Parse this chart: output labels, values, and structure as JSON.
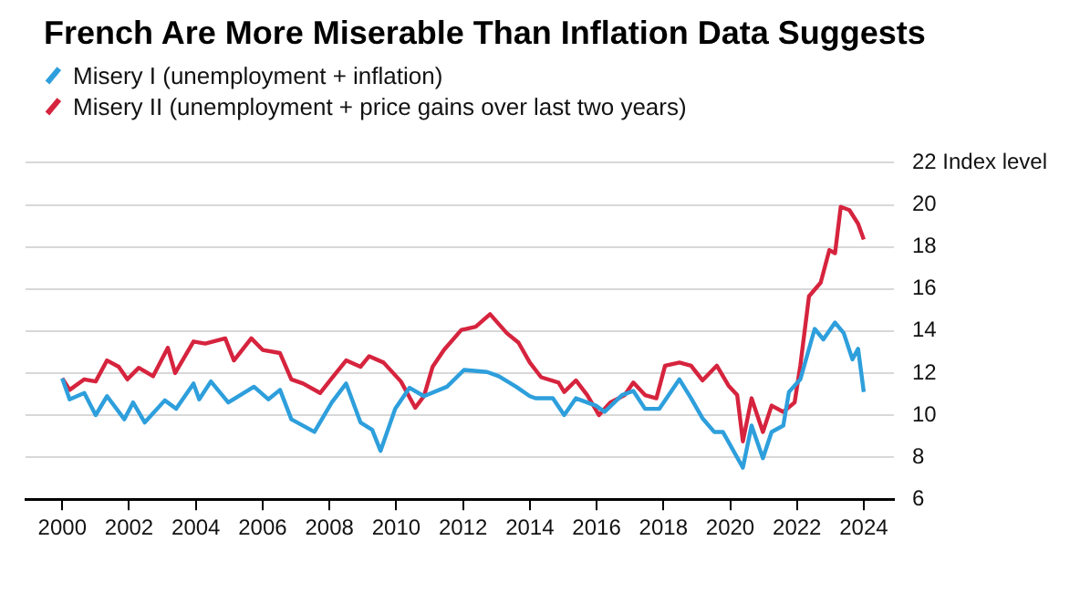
{
  "chart_data": {
    "type": "line",
    "title": "French Are More Miserable Than Inflation Data Suggests",
    "series": [
      {
        "name": "Misery I (unemployment + inflation)",
        "color": "#2e9fdc",
        "x": [
          2000.0,
          2000.22,
          2000.66,
          2001.0,
          2001.34,
          2001.86,
          2002.12,
          2002.47,
          2003.07,
          2003.41,
          2003.93,
          2004.1,
          2004.45,
          2004.97,
          2005.74,
          2006.17,
          2006.52,
          2006.86,
          2007.55,
          2008.07,
          2008.5,
          2008.93,
          2009.28,
          2009.53,
          2009.97,
          2010.4,
          2010.83,
          2011.52,
          2012.03,
          2012.72,
          2013.07,
          2013.59,
          2014.0,
          2014.17,
          2014.69,
          2015.03,
          2015.38,
          2015.98,
          2016.24,
          2016.76,
          2017.1,
          2017.45,
          2017.88,
          2018.48,
          2018.83,
          2019.17,
          2019.52,
          2019.78,
          2020.38,
          2020.64,
          2020.98,
          2021.24,
          2021.59,
          2021.76,
          2022.1,
          2022.53,
          2022.79,
          2023.14,
          2023.4,
          2023.66,
          2023.83,
          2024.0
        ],
        "values": [
          11.75,
          10.75,
          11.05,
          10.0,
          10.9,
          9.8,
          10.6,
          9.65,
          10.7,
          10.3,
          11.5,
          10.75,
          11.6,
          10.6,
          11.35,
          10.75,
          11.2,
          9.8,
          9.2,
          10.6,
          11.5,
          9.65,
          9.3,
          8.3,
          10.3,
          11.3,
          10.9,
          11.35,
          12.15,
          12.05,
          11.85,
          11.35,
          10.9,
          10.8,
          10.8,
          10.0,
          10.8,
          10.45,
          10.15,
          10.95,
          11.15,
          10.3,
          10.3,
          11.7,
          10.8,
          9.85,
          9.2,
          9.2,
          7.5,
          9.5,
          7.95,
          9.2,
          9.5,
          11.1,
          11.7,
          14.1,
          13.6,
          14.4,
          13.9,
          12.65,
          13.15,
          11.1
        ]
      },
      {
        "name": "Misery II (unemployment + price gains over last two years)",
        "color": "#d6243e",
        "x": [
          2000.0,
          2000.22,
          2000.66,
          2001.0,
          2001.34,
          2001.69,
          2001.95,
          2002.29,
          2002.72,
          2003.16,
          2003.38,
          2003.93,
          2004.28,
          2004.88,
          2005.14,
          2005.66,
          2006.0,
          2006.52,
          2006.86,
          2007.21,
          2007.72,
          2008.07,
          2008.5,
          2008.93,
          2009.19,
          2009.62,
          2010.14,
          2010.57,
          2010.83,
          2011.09,
          2011.43,
          2011.95,
          2012.38,
          2012.81,
          2013.31,
          2013.66,
          2014.0,
          2014.34,
          2014.86,
          2015.03,
          2015.38,
          2015.72,
          2016.07,
          2016.41,
          2016.84,
          2017.1,
          2017.45,
          2017.79,
          2018.05,
          2018.48,
          2018.83,
          2019.17,
          2019.6,
          2019.95,
          2020.21,
          2020.38,
          2020.64,
          2020.98,
          2021.24,
          2021.59,
          2021.93,
          2022.1,
          2022.36,
          2022.71,
          2022.97,
          2023.14,
          2023.31,
          2023.57,
          2023.83,
          2024.0
        ],
        "values": [
          11.75,
          11.2,
          11.7,
          11.6,
          12.6,
          12.3,
          11.7,
          12.25,
          11.85,
          13.2,
          12.0,
          13.5,
          13.4,
          13.65,
          12.6,
          13.65,
          13.1,
          12.95,
          11.7,
          11.5,
          11.05,
          11.75,
          12.6,
          12.3,
          12.8,
          12.5,
          11.6,
          10.35,
          10.9,
          12.3,
          13.1,
          14.05,
          14.2,
          14.8,
          13.9,
          13.45,
          12.5,
          11.8,
          11.55,
          11.1,
          11.65,
          10.95,
          10.0,
          10.6,
          10.95,
          11.55,
          10.95,
          10.8,
          12.35,
          12.5,
          12.35,
          11.65,
          12.35,
          11.4,
          10.95,
          8.75,
          10.8,
          9.2,
          10.45,
          10.15,
          10.6,
          12.35,
          15.65,
          16.3,
          17.85,
          17.7,
          19.9,
          19.75,
          19.1,
          18.35
        ]
      }
    ],
    "xlim": [
      1998.9,
      2024.9
    ],
    "xticks": [
      2000,
      2002,
      2004,
      2006,
      2008,
      2010,
      2012,
      2014,
      2016,
      2018,
      2020,
      2022,
      2024
    ],
    "ylim": [
      6,
      22
    ],
    "yticks": [
      6,
      8,
      10,
      12,
      14,
      16,
      18,
      20,
      {
        "value": 22,
        "label": "22 Index level"
      }
    ],
    "grid": "y",
    "legend": "top left",
    "marker": "none",
    "line_style": "solid"
  }
}
